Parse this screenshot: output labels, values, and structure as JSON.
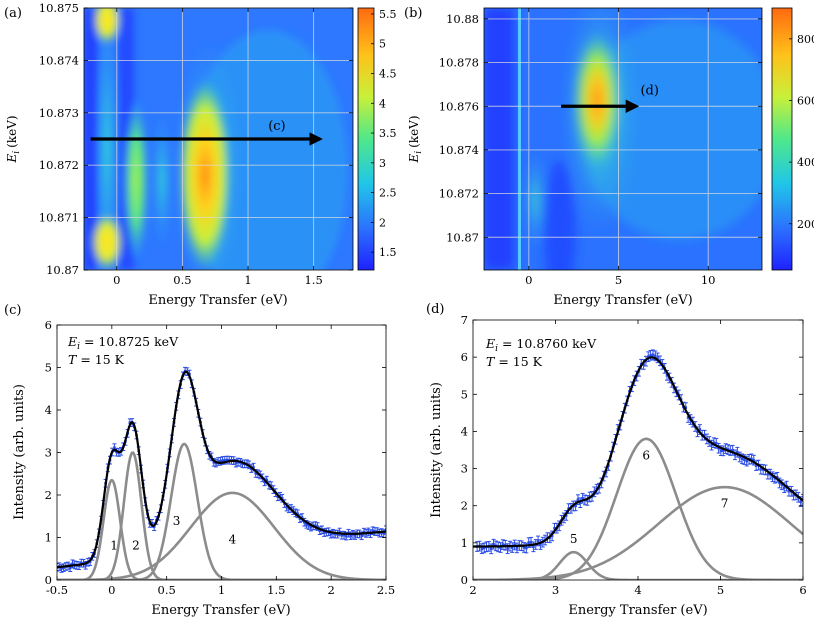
{
  "colors": {
    "fit": "#000000",
    "component": "#8c8c8c",
    "data": "#2a4ce6",
    "arrow": "#000000",
    "grid": "#c8c8c8"
  },
  "chart_data": [
    {
      "id": "a",
      "type": "heatmap",
      "panel_label": "(a)",
      "xlabel": "Energy Transfer (eV)",
      "ylabel": "E_i (keV)",
      "ylabel_main": "E",
      "ylabel_sub": "i",
      "ylabel_unit": "(keV)",
      "xlim": [
        -0.25,
        1.8
      ],
      "ylim": [
        10.87,
        10.875
      ],
      "xticks": [
        {
          "v": 0,
          "t": "0"
        },
        {
          "v": 0.5,
          "t": "0.5"
        },
        {
          "v": 1,
          "t": "1"
        },
        {
          "v": 1.5,
          "t": "1.5"
        }
      ],
      "yticks": [
        {
          "v": 10.87,
          "t": "10.87"
        },
        {
          "v": 10.871,
          "t": "10.871"
        },
        {
          "v": 10.872,
          "t": "10.872"
        },
        {
          "v": 10.873,
          "t": "10.873"
        },
        {
          "v": 10.874,
          "t": "10.874"
        },
        {
          "v": 10.875,
          "t": "10.875"
        }
      ],
      "colorbar": {
        "min": 1.2,
        "max": 5.6,
        "ticks": [
          "1.5",
          "2",
          "2.5",
          "3",
          "3.5",
          "4",
          "4.5",
          "5",
          "5.5"
        ],
        "tick_values": [
          1.5,
          2,
          2.5,
          3,
          3.5,
          4,
          4.5,
          5,
          5.5
        ]
      },
      "arrow": {
        "x0": -0.2,
        "x1": 1.55,
        "y": 10.8725,
        "label": "(c)"
      }
    },
    {
      "id": "b",
      "type": "heatmap",
      "panel_label": "(b)",
      "xlabel": "Energy Transfer (eV)",
      "ylabel": "E_i (keV)",
      "ylabel_main": "E",
      "ylabel_sub": "i",
      "ylabel_unit": "(keV)",
      "xlim": [
        -2.5,
        13
      ],
      "ylim": [
        10.8685,
        10.8805
      ],
      "xticks": [
        {
          "v": 0,
          "t": "0"
        },
        {
          "v": 5,
          "t": "5"
        },
        {
          "v": 10,
          "t": "10"
        }
      ],
      "yticks": [
        {
          "v": 10.87,
          "t": "10.87"
        },
        {
          "v": 10.872,
          "t": "10.872"
        },
        {
          "v": 10.874,
          "t": "10.874"
        },
        {
          "v": 10.876,
          "t": "10.876"
        },
        {
          "v": 10.878,
          "t": "10.878"
        },
        {
          "v": 10.88,
          "t": "10.88"
        }
      ],
      "colorbar": {
        "min": 50,
        "max": 900,
        "ticks": [
          "200",
          "400",
          "600",
          "800"
        ],
        "tick_values": [
          200,
          400,
          600,
          800
        ]
      },
      "arrow": {
        "x0": 1.8,
        "x1": 6,
        "y": 10.876,
        "label": "(d)"
      }
    },
    {
      "id": "c",
      "type": "line",
      "panel_label": "(c)",
      "xlabel": "Energy Transfer (eV)",
      "ylabel": "Intensity (arb. units)",
      "xlim": [
        -0.5,
        2.5
      ],
      "ylim": [
        0,
        6
      ],
      "xticks": [
        {
          "v": -0.5,
          "t": "-0.5"
        },
        {
          "v": 0,
          "t": "0"
        },
        {
          "v": 0.5,
          "t": "0.5"
        },
        {
          "v": 1,
          "t": "1"
        },
        {
          "v": 1.5,
          "t": "1.5"
        },
        {
          "v": 2,
          "t": "2"
        },
        {
          "v": 2.5,
          "t": "2.5"
        }
      ],
      "yticks": [
        {
          "v": 0,
          "t": "0"
        },
        {
          "v": 1,
          "t": "1"
        },
        {
          "v": 2,
          "t": "2"
        },
        {
          "v": 3,
          "t": "3"
        },
        {
          "v": 4,
          "t": "4"
        },
        {
          "v": 5,
          "t": "5"
        },
        {
          "v": 6,
          "t": "6"
        }
      ],
      "annotations": [
        "E_i = 10.8725 keV",
        "T = 15 K"
      ],
      "ann_line1": {
        "italic": "E",
        "sub": "i",
        "rest": " = 10.8725 keV"
      },
      "ann_line2": {
        "italic": "T",
        "rest": " = 15 K"
      },
      "background": {
        "a": 0.3,
        "b": 0.28
      },
      "components": [
        {
          "name": "1",
          "center": 0.0,
          "height": 2.35,
          "sigma": 0.075,
          "label_x": 0.02,
          "label_y": 0.72
        },
        {
          "name": "2",
          "center": 0.19,
          "height": 3.0,
          "sigma": 0.08,
          "label_x": 0.22,
          "label_y": 0.72
        },
        {
          "name": "3",
          "center": 0.66,
          "height": 3.2,
          "sigma": 0.12,
          "label_x": 0.59,
          "label_y": 1.3
        },
        {
          "name": "4",
          "center": 1.1,
          "height": 2.05,
          "sigma": 0.38,
          "label_x": 1.1,
          "label_y": 0.86
        }
      ],
      "data_x_range": [
        -0.5,
        2.5
      ],
      "data_points": 150,
      "data_error": 0.09
    },
    {
      "id": "d",
      "type": "line",
      "panel_label": "(d)",
      "xlabel": "Energy Transfer (eV)",
      "ylabel": "Intensity (arb. units)",
      "xlim": [
        2,
        6
      ],
      "ylim": [
        0,
        7
      ],
      "xticks": [
        {
          "v": 2,
          "t": "2"
        },
        {
          "v": 3,
          "t": "3"
        },
        {
          "v": 4,
          "t": "4"
        },
        {
          "v": 5,
          "t": "5"
        },
        {
          "v": 6,
          "t": "6"
        }
      ],
      "yticks": [
        {
          "v": 0,
          "t": "0"
        },
        {
          "v": 1,
          "t": "1"
        },
        {
          "v": 2,
          "t": "2"
        },
        {
          "v": 3,
          "t": "3"
        },
        {
          "v": 4,
          "t": "4"
        },
        {
          "v": 5,
          "t": "5"
        },
        {
          "v": 6,
          "t": "6"
        },
        {
          "v": 7,
          "t": "7"
        }
      ],
      "annotations": [
        "E_i = 10.8760 keV",
        "T = 15 K"
      ],
      "ann_line1": {
        "italic": "E",
        "sub": "i",
        "rest": " = 10.8760 keV"
      },
      "ann_line2": {
        "italic": "T",
        "rest": " = 15 K"
      },
      "background": {
        "a": 0.9,
        "b": 0.0
      },
      "components": [
        {
          "name": "5",
          "center": 3.22,
          "height": 0.75,
          "sigma": 0.17,
          "label_x": 3.22,
          "label_y": 1.0
        },
        {
          "name": "6",
          "center": 4.1,
          "height": 3.8,
          "sigma": 0.36,
          "label_x": 4.1,
          "label_y": 3.25
        },
        {
          "name": "7",
          "center": 5.05,
          "height": 2.5,
          "sigma": 0.8,
          "label_x": 5.05,
          "label_y": 1.95
        }
      ],
      "data_x_range": [
        2.05,
        6.0
      ],
      "data_points": 140,
      "data_error": 0.13
    }
  ]
}
